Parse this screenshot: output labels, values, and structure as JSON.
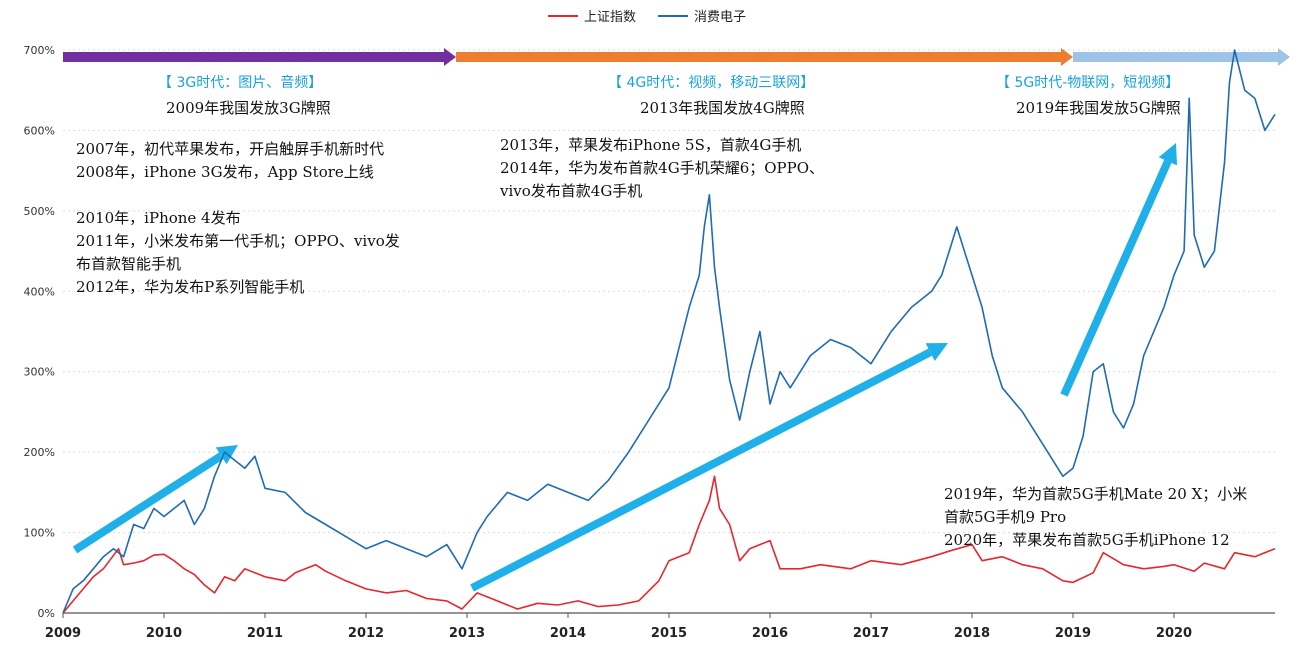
{
  "legend": [
    {
      "name": "上证指数",
      "color": "#e8262b"
    },
    {
      "name": "消费电子",
      "color": "#1f6bb5"
    }
  ],
  "eras": [
    {
      "title": "【 3G时代：图片、音频】",
      "license": "2009年我国发放3G牌照",
      "color": "#7030a0"
    },
    {
      "title": "【 4G时代：视频，移动三联网】",
      "license": "2013年我国发放4G牌照",
      "color": "#ed7d31"
    },
    {
      "title": "【 5G时代-物联网，短视频】",
      "license": "2019年我国发放5G牌照",
      "color": "#9dc3e6"
    }
  ],
  "annotations": {
    "g3": [
      "2007年，初代苹果发布，开启触屏手机新时代",
      "2008年，iPhone 3G发布，App Store上线",
      "",
      "2010年，iPhone 4发布",
      "2011年，小米发布第一代手机；OPPO、vivo发",
      "布首款智能手机",
      "2012年，华为发布P系列智能手机"
    ],
    "g4": [
      "2013年，苹果发布iPhone 5S，首款4G手机",
      "2014年，华为发布首款4G手机荣耀6；OPPO、",
      "vivo发布首款4G手机"
    ],
    "g5": [
      "2019年，华为首款5G手机Mate 20 X；小米",
      "首款5G手机9 Pro",
      "2020年，苹果发布首款5G手机iPhone 12"
    ]
  },
  "chart_data": {
    "type": "line",
    "x_ticks": [
      "2009",
      "2010",
      "2011",
      "2012",
      "2013",
      "2014",
      "2015",
      "2016",
      "2017",
      "2018",
      "2019",
      "2020"
    ],
    "y_ticks": [
      "0%",
      "100%",
      "200%",
      "300%",
      "400%",
      "500%",
      "600%",
      "700%"
    ],
    "xlim": [
      2009,
      2021
    ],
    "ylim": [
      0,
      700
    ],
    "grid": true,
    "legend_position": "top-center",
    "series": [
      {
        "name": "上证指数",
        "color": "#e8262b",
        "x": [
          2009.0,
          2009.1,
          2009.2,
          2009.3,
          2009.4,
          2009.55,
          2009.6,
          2009.7,
          2009.8,
          2009.9,
          2010.0,
          2010.1,
          2010.2,
          2010.3,
          2010.4,
          2010.5,
          2010.6,
          2010.7,
          2010.8,
          2010.9,
          2011.0,
          2011.2,
          2011.3,
          2011.5,
          2011.6,
          2011.8,
          2012.0,
          2012.2,
          2012.4,
          2012.6,
          2012.8,
          2012.95,
          2013.1,
          2013.3,
          2013.5,
          2013.7,
          2013.9,
          2014.1,
          2014.3,
          2014.5,
          2014.7,
          2014.9,
          2015.0,
          2015.2,
          2015.3,
          2015.4,
          2015.45,
          2015.5,
          2015.6,
          2015.7,
          2015.8,
          2016.0,
          2016.1,
          2016.3,
          2016.5,
          2016.8,
          2017.0,
          2017.3,
          2017.6,
          2017.8,
          2018.0,
          2018.1,
          2018.3,
          2018.5,
          2018.7,
          2018.9,
          2019.0,
          2019.2,
          2019.3,
          2019.5,
          2019.7,
          2019.9,
          2020.0,
          2020.2,
          2020.3,
          2020.5,
          2020.6,
          2020.8,
          2021.0
        ],
        "values": [
          0,
          15,
          30,
          45,
          55,
          80,
          60,
          62,
          65,
          72,
          73,
          65,
          55,
          48,
          35,
          25,
          45,
          40,
          55,
          50,
          45,
          40,
          50,
          60,
          52,
          40,
          30,
          25,
          28,
          18,
          15,
          5,
          25,
          15,
          5,
          12,
          10,
          15,
          8,
          10,
          15,
          40,
          65,
          75,
          110,
          140,
          170,
          130,
          110,
          65,
          80,
          90,
          55,
          55,
          60,
          55,
          65,
          60,
          70,
          78,
          85,
          65,
          70,
          60,
          55,
          40,
          38,
          50,
          75,
          60,
          55,
          58,
          60,
          52,
          62,
          55,
          75,
          70,
          80
        ]
      },
      {
        "name": "消费电子",
        "color": "#1f6bb5",
        "x": [
          2009.0,
          2009.1,
          2009.2,
          2009.3,
          2009.4,
          2009.5,
          2009.6,
          2009.7,
          2009.8,
          2009.9,
          2010.0,
          2010.2,
          2010.3,
          2010.4,
          2010.5,
          2010.6,
          2010.7,
          2010.8,
          2010.9,
          2011.0,
          2011.2,
          2011.4,
          2011.6,
          2011.8,
          2012.0,
          2012.2,
          2012.4,
          2012.6,
          2012.8,
          2012.95,
          2013.1,
          2013.2,
          2013.4,
          2013.6,
          2013.8,
          2014.0,
          2014.2,
          2014.4,
          2014.6,
          2014.8,
          2015.0,
          2015.1,
          2015.2,
          2015.3,
          2015.35,
          2015.4,
          2015.45,
          2015.5,
          2015.6,
          2015.7,
          2015.8,
          2015.9,
          2016.0,
          2016.1,
          2016.2,
          2016.4,
          2016.6,
          2016.8,
          2017.0,
          2017.2,
          2017.4,
          2017.6,
          2017.7,
          2017.85,
          2018.0,
          2018.1,
          2018.2,
          2018.3,
          2018.5,
          2018.7,
          2018.9,
          2019.0,
          2019.1,
          2019.2,
          2019.3,
          2019.4,
          2019.5,
          2019.6,
          2019.7,
          2019.8,
          2019.9,
          2020.0,
          2020.1,
          2020.15,
          2020.2,
          2020.3,
          2020.4,
          2020.5,
          2020.55,
          2020.6,
          2020.7,
          2020.8,
          2020.9,
          2021.0
        ],
        "values": [
          0,
          30,
          40,
          55,
          70,
          80,
          70,
          110,
          105,
          130,
          120,
          140,
          110,
          130,
          170,
          200,
          190,
          180,
          195,
          155,
          150,
          125,
          110,
          95,
          80,
          90,
          80,
          70,
          85,
          55,
          100,
          120,
          150,
          140,
          160,
          150,
          140,
          165,
          200,
          240,
          280,
          330,
          380,
          420,
          480,
          520,
          430,
          380,
          290,
          240,
          300,
          350,
          260,
          300,
          280,
          320,
          340,
          330,
          310,
          350,
          380,
          400,
          420,
          480,
          420,
          380,
          320,
          280,
          250,
          210,
          170,
          180,
          220,
          300,
          310,
          250,
          230,
          260,
          320,
          350,
          380,
          420,
          450,
          640,
          470,
          430,
          450,
          560,
          660,
          700,
          650,
          640,
          600,
          620
        ]
      }
    ]
  }
}
